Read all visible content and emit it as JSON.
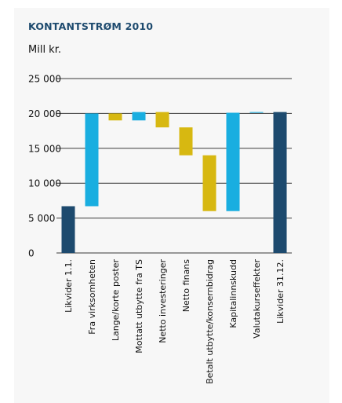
{
  "chart_data": {
    "type": "bar",
    "subtype": "waterfall",
    "title": "KONTANTSTRØM 2010",
    "unit_label": "Mill kr.",
    "ylim": [
      0,
      25000
    ],
    "yticks": [
      0,
      5000,
      10000,
      15000,
      20000,
      25000
    ],
    "ytick_labels": [
      "0",
      "5 000",
      "10 000",
      "15 000",
      "20 000",
      "25 000"
    ],
    "grid": true,
    "colors": {
      "total": "#1d4a6e",
      "positive": "#19aee0",
      "negative": "#d7b811"
    },
    "categories": [
      "Likvider 1.1.",
      "Fra virksomheten",
      "Lange/korte poster",
      "Mottatt utbytte fra TS",
      "Netto investeringer",
      "Netto finans",
      "Betalt utbytte/konsernbidrag",
      "Kapitalinnskudd",
      "Valutakurseffekter",
      "Likvider 31.12."
    ],
    "bars": [
      {
        "start": 0,
        "end": 6700,
        "kind": "total"
      },
      {
        "start": 6700,
        "end": 20000,
        "kind": "positive"
      },
      {
        "start": 20000,
        "end": 19000,
        "kind": "negative"
      },
      {
        "start": 19000,
        "end": 20200,
        "kind": "positive"
      },
      {
        "start": 20200,
        "end": 18000,
        "kind": "negative"
      },
      {
        "start": 18000,
        "end": 14000,
        "kind": "negative"
      },
      {
        "start": 14000,
        "end": 6000,
        "kind": "negative"
      },
      {
        "start": 6000,
        "end": 20100,
        "kind": "positive"
      },
      {
        "start": 20100,
        "end": 20200,
        "kind": "positive"
      },
      {
        "start": 0,
        "end": 20200,
        "kind": "total"
      }
    ]
  }
}
